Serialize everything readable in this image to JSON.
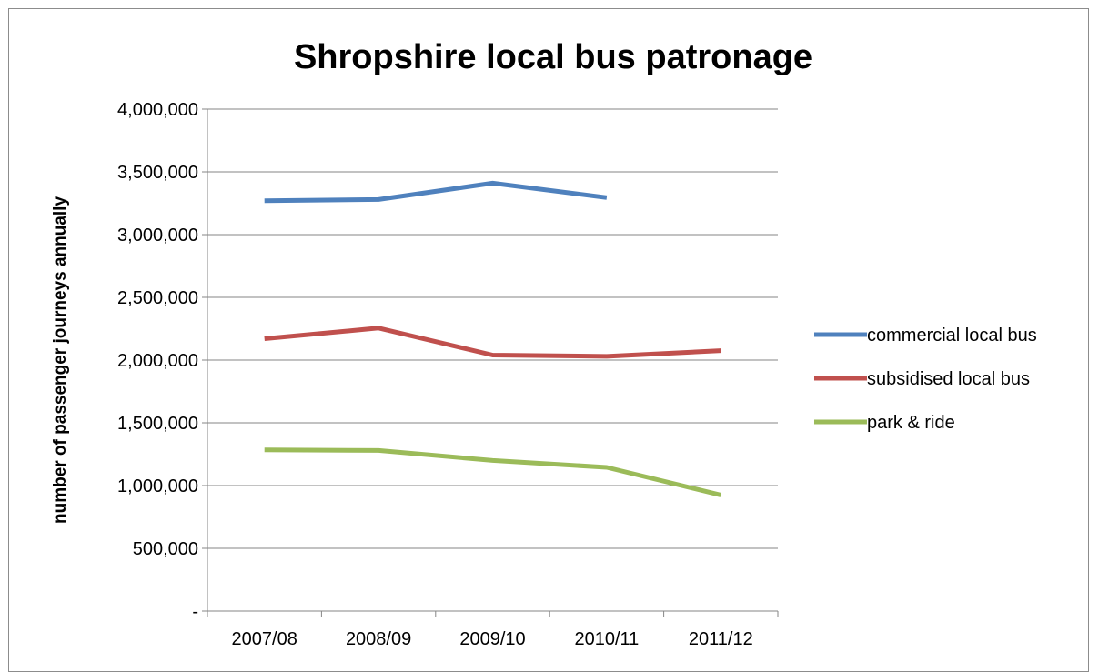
{
  "chart_data": {
    "type": "line",
    "title": "Shropshire local bus patronage",
    "xlabel": "",
    "ylabel": "number of passenger journeys annually",
    "categories": [
      "2007/08",
      "2008/09",
      "2009/10",
      "2010/11",
      "2011/12"
    ],
    "y_tick_labels": [
      "-",
      "500,000",
      "1,000,000",
      "1,500,000",
      "2,000,000",
      "2,500,000",
      "3,000,000",
      "3,500,000",
      "4,000,000"
    ],
    "ylim": [
      0,
      4000000
    ],
    "grid": true,
    "legend_position": "right",
    "series": [
      {
        "name": "commercial local bus",
        "color": "#4f81bd",
        "values": [
          3270000,
          3280000,
          3410000,
          3295000,
          null
        ]
      },
      {
        "name": "subsidised local bus",
        "color": "#c0504d",
        "values": [
          2170000,
          2255000,
          2040000,
          2030000,
          2075000
        ]
      },
      {
        "name": "park & ride",
        "color": "#9bbb59",
        "values": [
          1285000,
          1280000,
          1200000,
          1145000,
          925000
        ]
      }
    ]
  }
}
